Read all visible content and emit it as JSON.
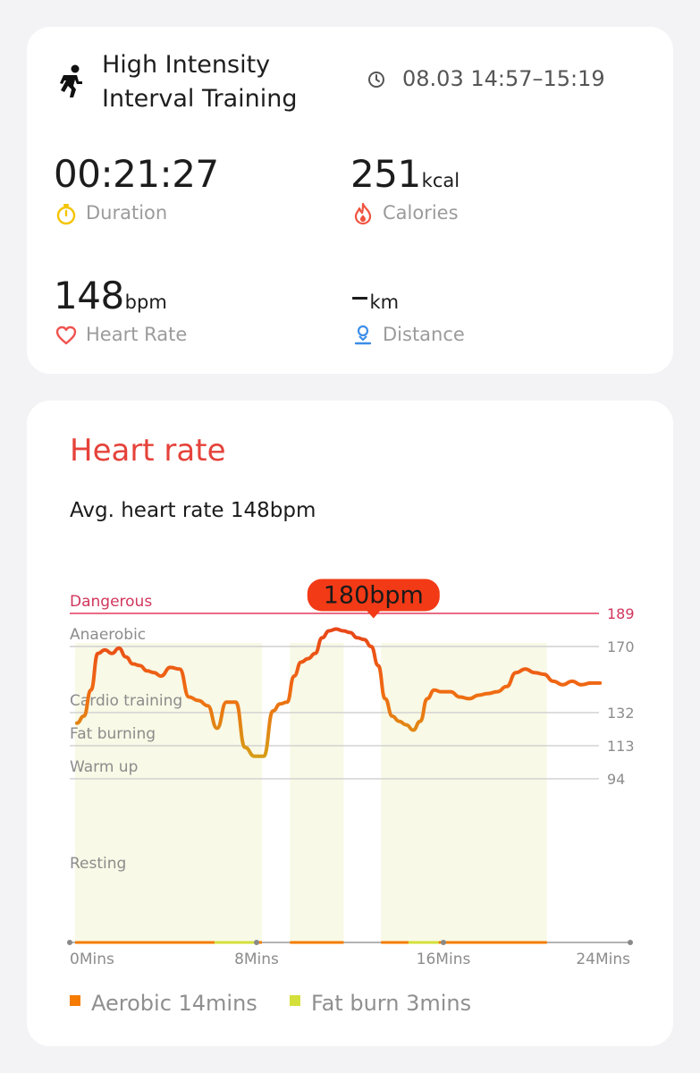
{
  "summary": {
    "workout_icon": "running-person-icon",
    "title_line1": "High Intensity",
    "title_line2": "Interval Training",
    "clock_icon": "clock-icon",
    "time_range": "08.03 14:57–15:19",
    "duration": {
      "value": "00:21:27",
      "unit": "",
      "label": "Duration",
      "icon": "stopwatch-icon",
      "icon_color": "#f5c400"
    },
    "calories": {
      "value": "251",
      "unit": "kcal",
      "label": "Calories",
      "icon": "flame-icon",
      "icon_color": "#f0533f"
    },
    "heart_rate": {
      "value": "148",
      "unit": "bpm",
      "label": "Heart Rate",
      "icon": "heart-icon",
      "icon_color": "#ef5350"
    },
    "distance": {
      "value": "–",
      "unit": "km",
      "label": "Distance",
      "icon": "map-pin-icon",
      "icon_color": "#3d8ee8"
    }
  },
  "heart_rate_card": {
    "title": "Heart rate",
    "avg_text": "Avg. heart rate 148bpm",
    "peak_label": "180bpm",
    "legend": [
      {
        "label": "Aerobic 14mins",
        "color": "#f57c00"
      },
      {
        "label": "Fat burn 3mins",
        "color": "#d4e03a"
      }
    ]
  },
  "chart_data": {
    "type": "line",
    "x_unit": "Mins",
    "x_ticks": [
      "0Mins",
      "8Mins",
      "16Mins",
      "24Mins"
    ],
    "xlim": [
      0,
      24
    ],
    "ylim": [
      0,
      189
    ],
    "zones": [
      {
        "name": "Dangerous",
        "threshold": 189,
        "color": "#e23b5a"
      },
      {
        "name": "Anaerobic",
        "threshold": 170,
        "color": "#cfcfcf"
      },
      {
        "name": "Cardio training",
        "threshold": 132,
        "color": "#cfcfcf"
      },
      {
        "name": "Fat burning",
        "threshold": 113,
        "color": "#cfcfcf"
      },
      {
        "name": "Warm up",
        "threshold": 94,
        "color": "#cfcfcf"
      },
      {
        "name": "Resting",
        "threshold": null,
        "color": null
      }
    ],
    "y_tick_labels": [
      "189",
      "170",
      "132",
      "113",
      "94"
    ],
    "peak": {
      "x": 12.7,
      "y": 180,
      "label": "180bpm"
    },
    "series": [
      {
        "x": [
          0.0,
          0.3,
          0.6,
          0.9,
          1.2,
          1.5,
          1.8,
          2.1,
          2.4,
          2.7,
          3.0,
          3.3,
          3.6,
          4.0,
          4.4,
          4.8,
          5.2,
          5.6,
          6.0,
          6.4,
          6.8,
          7.2,
          7.6,
          8.0,
          8.4,
          8.7,
          9.0,
          9.3,
          9.6,
          9.9,
          10.2,
          10.5,
          10.8,
          11.1,
          11.4,
          11.7,
          12.0,
          12.3,
          12.6,
          12.9,
          13.2,
          13.5,
          13.8,
          14.1,
          14.4,
          14.7,
          15.0,
          15.3,
          15.6,
          16.0,
          16.4,
          16.8,
          17.2,
          17.6,
          18.0,
          18.4,
          18.8,
          19.2,
          19.6,
          20.0,
          20.4,
          20.8,
          21.2,
          21.6,
          22.0,
          22.4
        ],
        "y": [
          126,
          130,
          145,
          166,
          168,
          166,
          169,
          164,
          160,
          159,
          156,
          155,
          153,
          158,
          157,
          141,
          139,
          136,
          123,
          138,
          138,
          112,
          107,
          107,
          133,
          137,
          138,
          153,
          161,
          163,
          166,
          175,
          179,
          180,
          179,
          178,
          175,
          174,
          170,
          159,
          140,
          130,
          127,
          125,
          122,
          127,
          140,
          145,
          144,
          144,
          141,
          140,
          142,
          143,
          144,
          147,
          155,
          157,
          155,
          154,
          150,
          148,
          150,
          148,
          149,
          149
        ]
      }
    ],
    "zone_bands": [
      {
        "start": 0.0,
        "end": 8.0,
        "zone": "Aerobic",
        "color": "#f57c00"
      },
      {
        "start": 9.2,
        "end": 11.5,
        "zone": "Aerobic",
        "color": "#f57c00"
      },
      {
        "start": 13.1,
        "end": 20.2,
        "zone": "Aerobic",
        "color": "#f57c00"
      }
    ]
  }
}
